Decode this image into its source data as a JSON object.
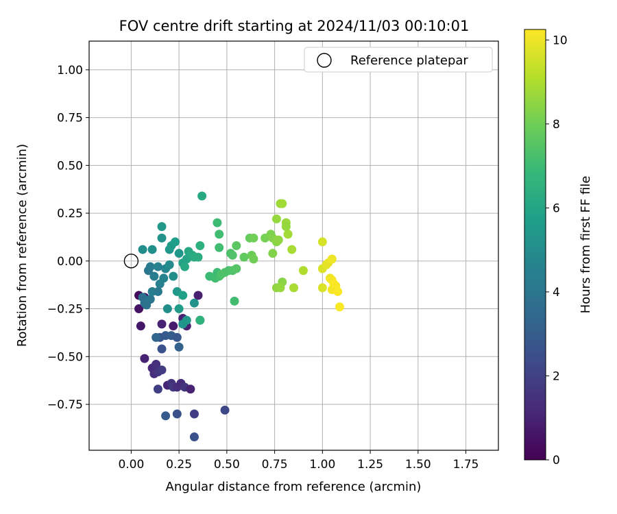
{
  "chart_data": {
    "type": "scatter",
    "title": "FOV centre drift starting at 2024/11/03 00:10:01",
    "xlabel": "Angular distance from reference (arcmin)",
    "ylabel": "Rotation from reference (arcmin)",
    "xlim": [
      -0.22,
      1.92
    ],
    "ylim": [
      -0.99,
      1.15
    ],
    "x_ticks": [
      0.0,
      0.25,
      0.5,
      0.75,
      1.0,
      1.25,
      1.5,
      1.75
    ],
    "x_tick_labels": [
      "0.00",
      "0.25",
      "0.50",
      "0.75",
      "1.00",
      "1.25",
      "1.50",
      "1.75"
    ],
    "y_ticks": [
      1.0,
      0.75,
      0.5,
      0.25,
      0.0,
      -0.25,
      -0.5,
      -0.75
    ],
    "y_tick_labels": [
      "1.00",
      "0.75",
      "0.50",
      "0.25",
      "0.00",
      "−0.25",
      "−0.50",
      "−0.75"
    ],
    "grid": true,
    "legend": {
      "position": "top-right",
      "label": "Reference platepar"
    },
    "reference_point": {
      "x": 0.0,
      "y": 0.0
    },
    "colorbar": {
      "label": "Hours from first FF file",
      "colormap": "viridis",
      "range": [
        0,
        10.25
      ],
      "ticks": [
        0,
        2,
        4,
        6,
        8,
        10
      ],
      "tick_labels": [
        "0",
        "2",
        "4",
        "6",
        "8",
        "10"
      ]
    },
    "colormap_stops": [
      "#440154",
      "#482878",
      "#3e4989",
      "#31688e",
      "#26828e",
      "#1f9e89",
      "#35b779",
      "#6ece58",
      "#b5de2b",
      "#fde725"
    ],
    "points": [
      [
        0.04,
        -0.18,
        0.3
      ],
      [
        0.07,
        -0.19,
        0.4
      ],
      [
        0.04,
        -0.25,
        0.5
      ],
      [
        0.05,
        -0.34,
        0.6
      ],
      [
        0.07,
        -0.51,
        1.0
      ],
      [
        0.11,
        -0.56,
        1.2
      ],
      [
        0.13,
        -0.54,
        1.4
      ],
      [
        0.12,
        -0.59,
        1.3
      ],
      [
        0.14,
        -0.58,
        1.6
      ],
      [
        0.16,
        -0.57,
        1.8
      ],
      [
        0.14,
        -0.67,
        1.9
      ],
      [
        0.19,
        -0.65,
        1.1
      ],
      [
        0.21,
        -0.64,
        1.5
      ],
      [
        0.22,
        -0.66,
        1.7
      ],
      [
        0.24,
        -0.66,
        1.3
      ],
      [
        0.26,
        -0.64,
        1.2
      ],
      [
        0.28,
        -0.66,
        1.6
      ],
      [
        0.31,
        -0.67,
        1.0
      ],
      [
        0.16,
        -0.33,
        1.0
      ],
      [
        0.22,
        -0.34,
        0.8
      ],
      [
        0.27,
        -0.3,
        1.0
      ],
      [
        0.29,
        -0.34,
        0.9
      ],
      [
        0.36,
        -0.31,
        1.1
      ],
      [
        0.35,
        -0.18,
        0.9
      ],
      [
        0.49,
        -0.78,
        2.2
      ],
      [
        0.33,
        -0.8,
        1.9
      ],
      [
        0.24,
        -0.8,
        2.6
      ],
      [
        0.18,
        -0.81,
        2.9
      ],
      [
        0.33,
        -0.92,
        2.6
      ],
      [
        0.15,
        -0.4,
        2.7
      ],
      [
        0.18,
        -0.39,
        2.9
      ],
      [
        0.21,
        -0.39,
        3.0
      ],
      [
        0.24,
        -0.4,
        2.8
      ],
      [
        0.25,
        -0.45,
        3.2
      ],
      [
        0.16,
        -0.46,
        2.6
      ],
      [
        0.13,
        -0.4,
        3.3
      ],
      [
        0.06,
        -0.19,
        3.7
      ],
      [
        0.07,
        -0.22,
        3.8
      ],
      [
        0.08,
        -0.23,
        3.9
      ],
      [
        0.1,
        -0.2,
        4.0
      ],
      [
        0.09,
        -0.05,
        4.1
      ],
      [
        0.1,
        -0.03,
        4.2
      ],
      [
        0.12,
        -0.08,
        4.3
      ],
      [
        0.11,
        -0.16,
        4.4
      ],
      [
        0.15,
        -0.12,
        4.5
      ],
      [
        0.17,
        -0.09,
        4.6
      ],
      [
        0.18,
        -0.04,
        4.7
      ],
      [
        0.14,
        -0.03,
        4.5
      ],
      [
        0.2,
        -0.02,
        4.9
      ],
      [
        0.19,
        -0.25,
        5.1
      ],
      [
        0.22,
        -0.08,
        5.0
      ],
      [
        0.14,
        -0.16,
        4.2
      ],
      [
        0.06,
        0.06,
        5.0
      ],
      [
        0.11,
        0.06,
        5.1
      ],
      [
        0.16,
        0.12,
        5.2
      ],
      [
        0.16,
        0.18,
        5.4
      ],
      [
        0.2,
        0.06,
        5.5
      ],
      [
        0.21,
        0.08,
        5.6
      ],
      [
        0.23,
        0.1,
        5.7
      ],
      [
        0.25,
        0.04,
        5.4
      ],
      [
        0.24,
        -0.16,
        5.5
      ],
      [
        0.25,
        -0.25,
        5.6
      ],
      [
        0.27,
        -0.18,
        5.8
      ],
      [
        0.27,
        -0.01,
        5.9
      ],
      [
        0.29,
        0.01,
        6.0
      ],
      [
        0.3,
        0.05,
        6.1
      ],
      [
        0.32,
        0.03,
        6.2
      ],
      [
        0.33,
        0.02,
        6.3
      ],
      [
        0.35,
        0.02,
        6.4
      ],
      [
        0.36,
        0.08,
        6.5
      ],
      [
        0.28,
        -0.03,
        6.1
      ],
      [
        0.27,
        -0.33,
        5.3
      ],
      [
        0.29,
        -0.31,
        5.4
      ],
      [
        0.36,
        -0.31,
        6.6
      ],
      [
        0.33,
        -0.22,
        5.2
      ],
      [
        0.37,
        0.34,
        6.2
      ],
      [
        0.41,
        -0.08,
        7.0
      ],
      [
        0.44,
        -0.09,
        7.1
      ],
      [
        0.46,
        -0.08,
        7.2
      ],
      [
        0.45,
        -0.06,
        7.0
      ],
      [
        0.47,
        -0.07,
        7.3
      ],
      [
        0.49,
        -0.06,
        7.4
      ],
      [
        0.51,
        -0.05,
        7.3
      ],
      [
        0.53,
        -0.05,
        7.4
      ],
      [
        0.55,
        -0.04,
        7.5
      ],
      [
        0.45,
        0.2,
        7.0
      ],
      [
        0.46,
        0.14,
        7.1
      ],
      [
        0.46,
        0.07,
        7.1
      ],
      [
        0.52,
        0.04,
        7.3
      ],
      [
        0.53,
        0.03,
        7.4
      ],
      [
        0.54,
        -0.21,
        7.1
      ],
      [
        0.55,
        0.08,
        7.6
      ],
      [
        0.59,
        0.02,
        7.7
      ],
      [
        0.62,
        0.12,
        7.8
      ],
      [
        0.63,
        0.03,
        7.9
      ],
      [
        0.64,
        0.12,
        8.0
      ],
      [
        0.64,
        0.01,
        8.0
      ],
      [
        0.7,
        0.12,
        8.1
      ],
      [
        0.73,
        0.14,
        8.2
      ],
      [
        0.74,
        0.12,
        8.3
      ],
      [
        0.76,
        0.1,
        8.4
      ],
      [
        0.77,
        0.11,
        8.5
      ],
      [
        0.74,
        0.04,
        8.3
      ],
      [
        0.76,
        0.22,
        8.6
      ],
      [
        0.78,
        0.3,
        8.7
      ],
      [
        0.79,
        0.3,
        8.8
      ],
      [
        0.81,
        0.2,
        8.7
      ],
      [
        0.81,
        0.18,
        8.6
      ],
      [
        0.82,
        0.14,
        8.8
      ],
      [
        0.84,
        0.06,
        8.9
      ],
      [
        0.79,
        -0.11,
        8.4
      ],
      [
        0.76,
        -0.14,
        8.5
      ],
      [
        0.78,
        -0.14,
        8.6
      ],
      [
        0.85,
        -0.14,
        8.9
      ],
      [
        0.9,
        -0.05,
        9.0
      ],
      [
        1.0,
        0.1,
        9.6
      ],
      [
        1.0,
        -0.04,
        9.7
      ],
      [
        1.02,
        -0.02,
        9.8
      ],
      [
        1.03,
        -0.01,
        9.9
      ],
      [
        1.05,
        0.01,
        10.0
      ],
      [
        1.0,
        -0.14,
        9.7
      ],
      [
        1.04,
        -0.09,
        10.0
      ],
      [
        1.05,
        -0.1,
        10.1
      ],
      [
        1.05,
        -0.15,
        10.1
      ],
      [
        1.07,
        -0.13,
        10.1
      ],
      [
        1.06,
        -0.12,
        10.2
      ],
      [
        1.08,
        -0.16,
        10.2
      ],
      [
        1.09,
        -0.24,
        10.2
      ]
    ]
  }
}
